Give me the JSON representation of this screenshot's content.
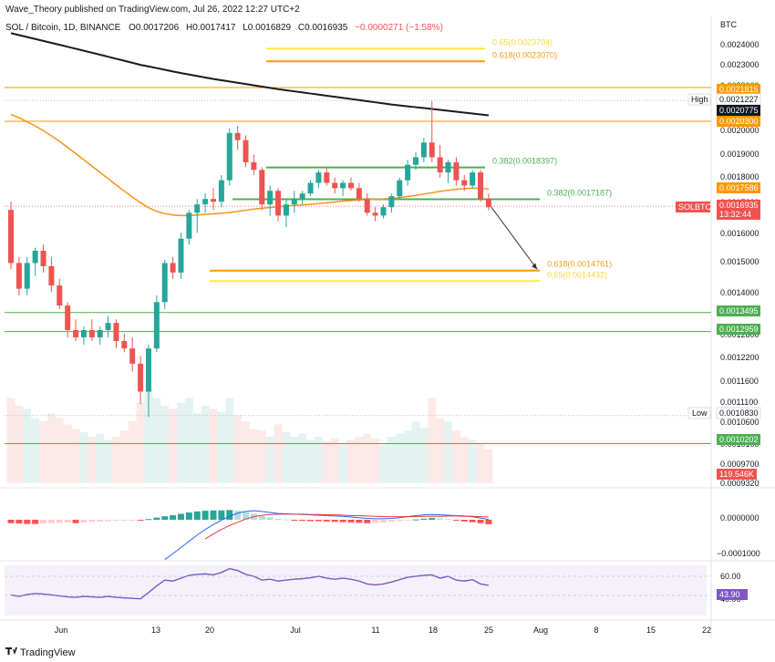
{
  "header": {
    "published": "Wave_Theory published on TradingView.com, Jul 26, 2022 12:27 UTC+2",
    "symbol_line": "SOL / Bitcoin, 1D, BINANCE",
    "o": "O0.0017206",
    "h": "H0.0017417",
    "l": "L0.0016829",
    "c": "C0.0016935",
    "change": "−0.0000271 (−1.58%)"
  },
  "price_axis": {
    "unit": "BTC",
    "ticks": [
      "0.0024000",
      "0.0023000",
      "0.0022000",
      "0.0021000",
      "0.0020000",
      "0.0019000",
      "0.0018000",
      "0.0017000",
      "0.0016000",
      "0.0015000",
      "0.0014000",
      "0.0013000",
      "0.0012800",
      "0.0012200",
      "0.0011600",
      "0.0011100",
      "0.0010600",
      "0.0010100",
      "0.0009700",
      "0.0009320"
    ]
  },
  "macd_axis": {
    "ticks": [
      "0.0000000",
      "−0.0001000"
    ]
  },
  "rsi_axis": {
    "ticks": [
      "60.00",
      "40.00"
    ]
  },
  "time_axis": {
    "labels": [
      "Jun",
      "13",
      "20",
      "Jul",
      "11",
      "18",
      "25",
      "Aug",
      "8",
      "15",
      "22"
    ]
  },
  "badges": {
    "b1": "0.0021815",
    "high_label": "High",
    "high_value": "0.0021227",
    "b2": "0.0020775",
    "b3": "0.0020300",
    "b4": "0.0017586",
    "sym_label": "SOLBTC",
    "last_price": "0.0016935",
    "countdown": "13:32:44",
    "b5": "0.0013495",
    "b6": "0.0012959",
    "low_label": "Low",
    "low_value": "0.0010830",
    "b7": "0.0010202",
    "volume": "119.546K",
    "rsi_value": "43.90"
  },
  "fib": {
    "f1": "0.65(0.0023704)",
    "f2": "0.618(0.0023070)",
    "f3": "0.382(0.0018397)",
    "f4": "0.382(0.0017187)",
    "f5": "0.618(0.0014761)",
    "f6": "0.65(0.0014432)"
  },
  "footer": {
    "brand": "TradingView"
  },
  "colors": {
    "up": "#26a69a",
    "down": "#ef5350",
    "ma200": "#1a1a1a",
    "ma50": "#f7931a",
    "green_line": "#4caf50",
    "orange_line": "#ff9800",
    "yellow_line": "#ffeb3b",
    "macd": "#2962ff",
    "signal": "#f23645",
    "rsi": "#7e57c2"
  },
  "chart_data": {
    "type": "candlestick",
    "title": "SOL / Bitcoin, 1D, BINANCE",
    "ylabel": "BTC",
    "ylim": [
      0.00093,
      0.00245
    ],
    "scale": "log",
    "dates": [
      "May 27",
      "May 28",
      "May 29",
      "May 30",
      "May 31",
      "Jun 1",
      "Jun 2",
      "Jun 3",
      "Jun 4",
      "Jun 5",
      "Jun 6",
      "Jun 7",
      "Jun 8",
      "Jun 9",
      "Jun 10",
      "Jun 11",
      "Jun 12",
      "Jun 13",
      "Jun 14",
      "Jun 15",
      "Jun 16",
      "Jun 17",
      "Jun 18",
      "Jun 19",
      "Jun 20",
      "Jun 21",
      "Jun 22",
      "Jun 23",
      "Jun 24",
      "Jun 25",
      "Jun 26",
      "Jun 27",
      "Jun 28",
      "Jun 29",
      "Jun 30",
      "Jul 1",
      "Jul 2",
      "Jul 3",
      "Jul 4",
      "Jul 5",
      "Jul 6",
      "Jul 7",
      "Jul 8",
      "Jul 9",
      "Jul 10",
      "Jul 11",
      "Jul 12",
      "Jul 13",
      "Jul 14",
      "Jul 15",
      "Jul 16",
      "Jul 17",
      "Jul 18",
      "Jul 19",
      "Jul 20",
      "Jul 21",
      "Jul 22",
      "Jul 23",
      "Jul 24",
      "Jul 25"
    ],
    "ohlc": [
      [
        0.00168,
        0.00171,
        0.00148,
        0.0015
      ],
      [
        0.0015,
        0.00152,
        0.0014,
        0.00142
      ],
      [
        0.00142,
        0.00152,
        0.0014,
        0.0015
      ],
      [
        0.0015,
        0.00155,
        0.00146,
        0.00154
      ],
      [
        0.00154,
        0.00156,
        0.00147,
        0.00149
      ],
      [
        0.00149,
        0.00152,
        0.00141,
        0.00143
      ],
      [
        0.00143,
        0.00145,
        0.00136,
        0.00137
      ],
      [
        0.00137,
        0.00138,
        0.00128,
        0.0013
      ],
      [
        0.0013,
        0.00133,
        0.00127,
        0.00128
      ],
      [
        0.00128,
        0.00131,
        0.00126,
        0.0013
      ],
      [
        0.0013,
        0.00133,
        0.00127,
        0.00128
      ],
      [
        0.00128,
        0.00131,
        0.00126,
        0.0013
      ],
      [
        0.0013,
        0.00134,
        0.00128,
        0.00132
      ],
      [
        0.00132,
        0.00133,
        0.00125,
        0.00127
      ],
      [
        0.00127,
        0.00129,
        0.00124,
        0.00125
      ],
      [
        0.00125,
        0.00128,
        0.00119,
        0.00121
      ],
      [
        0.00121,
        0.00123,
        0.00111,
        0.00114
      ],
      [
        0.00114,
        0.00126,
        0.00108,
        0.00125
      ],
      [
        0.00125,
        0.0014,
        0.00124,
        0.00138
      ],
      [
        0.00138,
        0.00151,
        0.00136,
        0.0015
      ],
      [
        0.0015,
        0.00152,
        0.00145,
        0.00147
      ],
      [
        0.00147,
        0.0016,
        0.00145,
        0.00158
      ],
      [
        0.00158,
        0.00168,
        0.00156,
        0.00167
      ],
      [
        0.00167,
        0.00172,
        0.0016,
        0.0017
      ],
      [
        0.0017,
        0.00174,
        0.00167,
        0.00172
      ],
      [
        0.00172,
        0.00176,
        0.00168,
        0.00171
      ],
      [
        0.00171,
        0.00181,
        0.00169,
        0.00179
      ],
      [
        0.00179,
        0.002,
        0.00177,
        0.00198
      ],
      [
        0.00198,
        0.00201,
        0.00191,
        0.00195
      ],
      [
        0.00195,
        0.00197,
        0.00184,
        0.00186
      ],
      [
        0.00186,
        0.00189,
        0.00181,
        0.00183
      ],
      [
        0.00183,
        0.00184,
        0.00168,
        0.0017
      ],
      [
        0.0017,
        0.00177,
        0.00166,
        0.00175
      ],
      [
        0.00175,
        0.00176,
        0.00164,
        0.00166
      ],
      [
        0.00166,
        0.00172,
        0.00162,
        0.0017
      ],
      [
        0.0017,
        0.00175,
        0.00167,
        0.00172
      ],
      [
        0.00172,
        0.00175,
        0.0017,
        0.00174
      ],
      [
        0.00174,
        0.00179,
        0.00173,
        0.00178
      ],
      [
        0.00178,
        0.00183,
        0.00176,
        0.00182
      ],
      [
        0.00182,
        0.00184,
        0.00177,
        0.00178
      ],
      [
        0.00178,
        0.0018,
        0.00174,
        0.00176
      ],
      [
        0.00176,
        0.00179,
        0.00173,
        0.00178
      ],
      [
        0.00178,
        0.0018,
        0.00175,
        0.00176
      ],
      [
        0.00176,
        0.00178,
        0.00171,
        0.00172
      ],
      [
        0.00172,
        0.00174,
        0.00166,
        0.00167
      ],
      [
        0.00167,
        0.00169,
        0.00164,
        0.00166
      ],
      [
        0.00166,
        0.0017,
        0.00165,
        0.00169
      ],
      [
        0.00169,
        0.00174,
        0.00167,
        0.00173
      ],
      [
        0.00173,
        0.0018,
        0.00172,
        0.00179
      ],
      [
        0.00179,
        0.00187,
        0.00177,
        0.00185
      ],
      [
        0.00185,
        0.0019,
        0.00183,
        0.00188
      ],
      [
        0.00188,
        0.00196,
        0.00186,
        0.00194
      ],
      [
        0.00194,
        0.00212,
        0.00186,
        0.00188
      ],
      [
        0.00188,
        0.00193,
        0.0018,
        0.00182
      ],
      [
        0.00182,
        0.00187,
        0.00178,
        0.00186
      ],
      [
        0.00186,
        0.00188,
        0.00177,
        0.00179
      ],
      [
        0.00179,
        0.00181,
        0.00175,
        0.00177
      ],
      [
        0.00177,
        0.00183,
        0.00176,
        0.00182
      ],
      [
        0.00182,
        0.00183,
        0.00171,
        0.00172
      ],
      [
        0.00172,
        0.00174,
        0.00168,
        0.00169
      ]
    ],
    "volume": [
      0.55,
      0.5,
      0.48,
      0.42,
      0.4,
      0.45,
      0.42,
      0.38,
      0.35,
      0.33,
      0.3,
      0.32,
      0.28,
      0.3,
      0.34,
      0.4,
      0.52,
      0.6,
      0.55,
      0.5,
      0.48,
      0.52,
      0.55,
      0.45,
      0.5,
      0.48,
      0.46,
      0.55,
      0.44,
      0.4,
      0.35,
      0.34,
      0.3,
      0.38,
      0.33,
      0.3,
      0.32,
      0.28,
      0.3,
      0.27,
      0.29,
      0.26,
      0.28,
      0.3,
      0.32,
      0.29,
      0.25,
      0.3,
      0.32,
      0.34,
      0.4,
      0.36,
      0.55,
      0.42,
      0.4,
      0.34,
      0.3,
      0.28,
      0.26,
      0.22
    ],
    "macd_hist": [
      -1e-05,
      -1.1e-05,
      -1.2e-05,
      -1.2e-05,
      -1.1e-05,
      -1e-05,
      -9e-06,
      -8e-06,
      -1e-05,
      -8e-06,
      -6e-06,
      -5e-06,
      -4e-06,
      -3e-06,
      -2e-06,
      -1e-06,
      -1e-06,
      2e-06,
      6e-06,
      1e-05,
      1.3e-05,
      1.7e-05,
      2.1e-05,
      2.4e-05,
      2.6e-05,
      2.7e-05,
      2.7e-05,
      2.8e-05,
      2.6e-05,
      2.2e-05,
      1.7e-05,
      1.2e-05,
      7e-06,
      3e-06,
      1e-06,
      -1e-06,
      -3e-06,
      -4e-06,
      -4e-06,
      -5e-06,
      -6e-06,
      -7e-06,
      -8e-06,
      -9e-06,
      -1e-05,
      -9e-06,
      -8e-06,
      -6e-06,
      -4e-06,
      -2e-06,
      1e-06,
      3e-06,
      5e-06,
      4e-06,
      2e-06,
      -2e-06,
      -5e-06,
      -7e-06,
      -1e-05,
      -1.3e-05
    ],
    "macd_line": [
      null,
      null,
      null,
      null,
      null,
      null,
      null,
      null,
      null,
      null,
      null,
      null,
      null,
      null,
      null,
      null,
      null,
      null,
      null,
      -0.000115,
      -9.8e-05,
      -8e-05,
      -6.2e-05,
      -4.4e-05,
      -2.8e-05,
      -1.4e-05,
      -1e-06,
      1e-05,
      1.9e-05,
      2.4e-05,
      2.6e-05,
      2.4e-05,
      2.1e-05,
      1.8e-05,
      1.7e-05,
      1.6e-05,
      1.5e-05,
      1.4e-05,
      1.3e-05,
      1.2e-05,
      1.1e-05,
      1e-05,
      8e-06,
      6e-06,
      4e-06,
      3e-06,
      3e-06,
      4e-06,
      6e-06,
      9e-06,
      1.2e-05,
      1.4e-05,
      1.5e-05,
      1.4e-05,
      1.3e-05,
      1.2e-05,
      1.1e-05,
      9e-06,
      5e-06,
      1e-06
    ],
    "signal_line": [
      null,
      null,
      null,
      null,
      null,
      null,
      null,
      null,
      null,
      null,
      null,
      null,
      null,
      null,
      null,
      null,
      null,
      null,
      null,
      null,
      null,
      null,
      null,
      null,
      -5.5e-05,
      -4.1e-05,
      -2.8e-05,
      -1.7e-05,
      -7e-06,
      2e-06,
      9e-06,
      1.3e-05,
      1.5e-05,
      1.6e-05,
      1.6e-05,
      1.6e-05,
      1.6e-05,
      1.5e-05,
      1.5e-05,
      1.4e-05,
      1.4e-05,
      1.3e-05,
      1.2e-05,
      1.2e-05,
      1.1e-05,
      1e-05,
      9e-06,
      9e-06,
      9e-06,
      9e-06,
      9e-06,
      1e-05,
      1e-05,
      1e-05,
      1.1e-05,
      1.1e-05,
      1e-05,
      1e-05,
      9e-06,
      8e-06
    ],
    "rsi": [
      40.5,
      39.0,
      41.0,
      42.0,
      41.5,
      40.5,
      39.5,
      38.5,
      38.0,
      39.0,
      38.5,
      38.0,
      39.0,
      38.0,
      37.5,
      37.0,
      36.5,
      43.0,
      50.0,
      56.0,
      55.0,
      58.0,
      61.0,
      62.0,
      62.5,
      61.5,
      64.0,
      68.0,
      66.0,
      62.0,
      60.0,
      56.0,
      57.0,
      55.0,
      56.0,
      57.0,
      57.5,
      58.5,
      60.0,
      58.0,
      57.0,
      58.0,
      57.0,
      55.0,
      52.0,
      51.0,
      52.0,
      54.0,
      56.5,
      59.0,
      60.0,
      61.0,
      61.5,
      58.0,
      60.0,
      56.0,
      55.0,
      56.5,
      52.0,
      50.5
    ],
    "ma200": [
      0.00245,
      0.00244,
      0.00243,
      0.00242,
      0.00241,
      0.0024,
      0.00239,
      0.00238,
      0.00237,
      0.00236,
      0.00235,
      0.00234,
      0.00233,
      0.00232,
      0.00231,
      0.0023,
      0.00229,
      0.002282,
      0.002274,
      0.002266,
      0.002258,
      0.00225,
      0.002243,
      0.002236,
      0.002229,
      0.002222,
      0.002216,
      0.00221,
      0.002204,
      0.002198,
      0.002192,
      0.002186,
      0.00218,
      0.002174,
      0.002169,
      0.002164,
      0.002159,
      0.002154,
      0.002149,
      0.002144,
      0.002139,
      0.002134,
      0.002129,
      0.002124,
      0.002119,
      0.002114,
      0.002109,
      0.002104,
      0.0021,
      0.002096,
      0.002092,
      0.002088,
      0.002084,
      0.00208,
      0.002076,
      0.002072,
      0.002068,
      0.002064,
      0.00206,
      0.002056
    ],
    "ma50": [
      0.00206,
      0.002045,
      0.002028,
      0.00201,
      0.00199,
      0.001968,
      0.001945,
      0.00192,
      0.001895,
      0.00187,
      0.001845,
      0.00182,
      0.001796,
      0.001772,
      0.001749,
      0.001727,
      0.001706,
      0.001688,
      0.001675,
      0.001667,
      0.001662,
      0.00166,
      0.00166,
      0.001662,
      0.001664,
      0.001666,
      0.001668,
      0.001671,
      0.001675,
      0.001679,
      0.001683,
      0.001686,
      0.001689,
      0.001692,
      0.001694,
      0.001696,
      0.001698,
      0.0017,
      0.001703,
      0.001706,
      0.001709,
      0.001712,
      0.001714,
      0.001716,
      0.001718,
      0.001719,
      0.00172,
      0.001722,
      0.001725,
      0.001729,
      0.001733,
      0.001738,
      0.001743,
      0.001748,
      0.001752,
      0.001756,
      0.001758,
      0.00176,
      0.001759,
      0.001757
    ],
    "horizontal_levels": [
      0.0021815,
      0.00203,
      0.0013495,
      0.0012959,
      0.0010202
    ],
    "fib_levels": [
      {
        "label": "0.65",
        "value": 0.0023704
      },
      {
        "label": "0.618",
        "value": 0.002307
      },
      {
        "label": "0.382",
        "value": 0.0018397
      },
      {
        "label": "0.382",
        "value": 0.0017187
      },
      {
        "label": "0.618",
        "value": 0.0014761
      },
      {
        "label": "0.65",
        "value": 0.0014432
      }
    ],
    "high": 0.0021227,
    "low": 0.001083,
    "last": 0.0016935,
    "projection": {
      "from": "Jul 25",
      "from_value": 0.00169,
      "to": "Jul 31",
      "to_value": 0.00148
    }
  }
}
